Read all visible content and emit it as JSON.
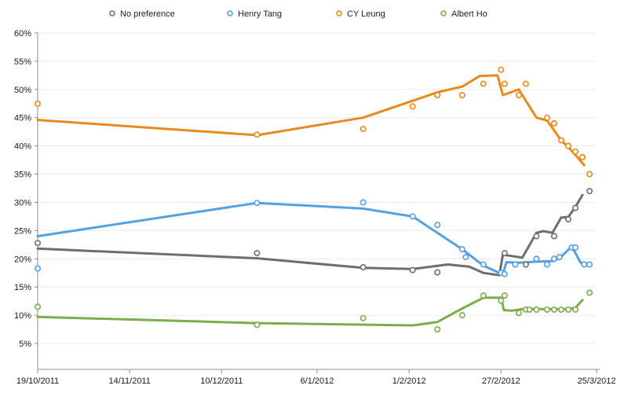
{
  "chart_data": {
    "type": "line",
    "title": "",
    "legend_position": "top",
    "grid": "horizontal",
    "background_color": "#FFFFFF",
    "grid_color": "#EBEBEB",
    "axis_color": "#8C8C8C",
    "label_color": "#1A1A1A",
    "legend_text_color": "#222222",
    "x_axis": {
      "unit": "date",
      "start": "19/10/2011",
      "end": "25/3/2012",
      "total_days": 158,
      "ticks": [
        {
          "day": 0,
          "label": "19/10/2011"
        },
        {
          "day": 26,
          "label": "14/11/2011"
        },
        {
          "day": 52,
          "label": "10/12/2011"
        },
        {
          "day": 79,
          "label": "6/1/2012"
        },
        {
          "day": 105,
          "label": "1/2/2012"
        },
        {
          "day": 131,
          "label": "27/2/2012"
        },
        {
          "day": 158,
          "label": "25/3/2012"
        }
      ]
    },
    "y_axis": {
      "min": 0,
      "max": 60,
      "tick_step": 5,
      "unit": "%",
      "tick_labels": [
        "5%",
        "10%",
        "15%",
        "20%",
        "25%",
        "30%",
        "35%",
        "40%",
        "45%",
        "50%",
        "55%",
        "60%"
      ]
    },
    "series": [
      {
        "name": "No preference",
        "color": "#6E6E6E",
        "points": [
          [
            0,
            22.8
          ],
          [
            62,
            21
          ],
          [
            92,
            18.5
          ],
          [
            106,
            18
          ],
          [
            113,
            17.6
          ],
          [
            132,
            21
          ],
          [
            138,
            19
          ],
          [
            141,
            24
          ],
          [
            146,
            24
          ],
          [
            150,
            27
          ],
          [
            152,
            29
          ],
          [
            156,
            32
          ]
        ],
        "trend": [
          [
            0,
            21.8
          ],
          [
            62,
            20.1
          ],
          [
            92,
            18.4
          ],
          [
            106,
            18.2
          ],
          [
            116,
            19
          ],
          [
            122,
            18.6
          ],
          [
            126,
            17.5
          ],
          [
            130.5,
            17.1
          ],
          [
            131.5,
            20.7
          ],
          [
            134,
            20.5
          ],
          [
            137,
            20.2
          ],
          [
            141,
            24.6
          ],
          [
            143,
            24.9
          ],
          [
            145.5,
            24.6
          ],
          [
            148,
            27.3
          ],
          [
            150,
            27.4
          ],
          [
            152,
            29.2
          ],
          [
            154,
            31.3
          ]
        ]
      },
      {
        "name": "Henry Tang",
        "color": "#55A0E0",
        "points": [
          [
            0,
            18.3
          ],
          [
            62,
            29.9
          ],
          [
            92,
            30
          ],
          [
            106,
            27.5
          ],
          [
            113,
            26
          ],
          [
            120,
            21.7
          ],
          [
            121,
            20.3
          ],
          [
            126,
            19
          ],
          [
            131,
            17.5
          ],
          [
            132,
            17.3
          ],
          [
            135,
            19
          ],
          [
            141,
            20
          ],
          [
            144,
            19
          ],
          [
            146,
            20
          ],
          [
            147.5,
            20.3
          ],
          [
            151,
            22
          ],
          [
            152,
            22
          ],
          [
            154.5,
            19
          ],
          [
            156,
            19
          ]
        ],
        "trend": [
          [
            0,
            24
          ],
          [
            62,
            29.9
          ],
          [
            92,
            28.9
          ],
          [
            106,
            27.5
          ],
          [
            120,
            21.7
          ],
          [
            126,
            18.8
          ],
          [
            130.5,
            17.5
          ],
          [
            131.5,
            17.3
          ],
          [
            132.5,
            19.4
          ],
          [
            136,
            19.3
          ],
          [
            141,
            19.5
          ],
          [
            146,
            19.6
          ],
          [
            148,
            20.4
          ],
          [
            151,
            22.2
          ],
          [
            153.5,
            19.3
          ],
          [
            155,
            19.2
          ]
        ]
      },
      {
        "name": "CY Leung",
        "color": "#E8891C",
        "points": [
          [
            0,
            47.5
          ],
          [
            62,
            42
          ],
          [
            92,
            43
          ],
          [
            106,
            47
          ],
          [
            113,
            49
          ],
          [
            120,
            49
          ],
          [
            126,
            51
          ],
          [
            131,
            53.5
          ],
          [
            132,
            51
          ],
          [
            136,
            49
          ],
          [
            138,
            51
          ],
          [
            144,
            45
          ],
          [
            146,
            44
          ],
          [
            148,
            41
          ],
          [
            150,
            40
          ],
          [
            152,
            39
          ],
          [
            154,
            38
          ],
          [
            156,
            35
          ]
        ],
        "trend": [
          [
            0,
            44.6
          ],
          [
            62,
            41.9
          ],
          [
            92,
            45
          ],
          [
            106,
            48
          ],
          [
            113,
            49.5
          ],
          [
            120,
            50.5
          ],
          [
            125,
            52.4
          ],
          [
            130,
            52.5
          ],
          [
            131.5,
            49
          ],
          [
            136,
            50
          ],
          [
            141,
            45
          ],
          [
            144,
            44.5
          ],
          [
            148,
            41
          ],
          [
            150,
            39.8
          ],
          [
            152,
            38.4
          ],
          [
            154.5,
            36.6
          ]
        ]
      },
      {
        "name": "Albert Ho",
        "color": "#7BAD4A",
        "points": [
          [
            0,
            11.5
          ],
          [
            62,
            8.3
          ],
          [
            92,
            9.5
          ],
          [
            113,
            7.5
          ],
          [
            120,
            10
          ],
          [
            126,
            13.5
          ],
          [
            131,
            12.6
          ],
          [
            132,
            13.5
          ],
          [
            136,
            10.4
          ],
          [
            138,
            11
          ],
          [
            139,
            11
          ],
          [
            141,
            11
          ],
          [
            144,
            11
          ],
          [
            146,
            11
          ],
          [
            148,
            11
          ],
          [
            150,
            11
          ],
          [
            152,
            11
          ],
          [
            156,
            14
          ]
        ],
        "trend": [
          [
            0,
            9.7
          ],
          [
            62,
            8.6
          ],
          [
            106,
            8.2
          ],
          [
            113,
            8.8
          ],
          [
            120,
            11.2
          ],
          [
            126,
            13.1
          ],
          [
            131,
            13.1
          ],
          [
            131.8,
            10.9
          ],
          [
            134,
            10.8
          ],
          [
            137,
            11.1
          ],
          [
            149,
            11.1
          ],
          [
            152,
            11.3
          ],
          [
            154,
            12.7
          ]
        ]
      }
    ]
  }
}
